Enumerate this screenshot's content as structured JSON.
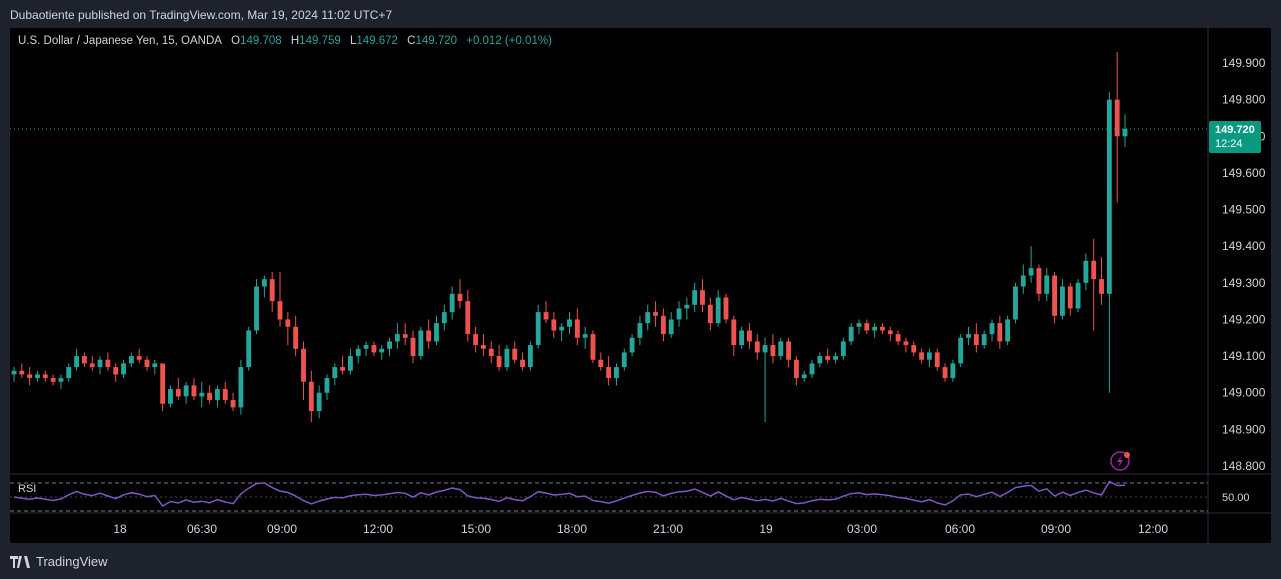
{
  "header": {
    "published_line": "Dubaotiente published on TradingView.com, Mar 19, 2024 11:02 UTC+7"
  },
  "legend": {
    "symbol": "U.S. Dollar / Japanese Yen, 15, OANDA",
    "o_label": "O",
    "o_value": "149.708",
    "h_label": "H",
    "h_value": "149.759",
    "l_label": "L",
    "l_value": "149.672",
    "c_label": "C",
    "c_value": "149.720",
    "change": "+0.012 (+0.01%)"
  },
  "price_tag": {
    "price": "149.720",
    "countdown": "12:24"
  },
  "rsi": {
    "label": "RSI",
    "level_label": "50.00"
  },
  "footer": {
    "brand": "TradingView"
  },
  "colors": {
    "up": "#26a69a",
    "down": "#ef5350",
    "rsi_line": "#7e57c2",
    "tag_bg": "#089981"
  },
  "icons": {
    "alert": "lightning-bolt-icon",
    "brand": "tradingview-logo-icon"
  },
  "chart_data": {
    "type": "candlestick",
    "symbol": "USDJPY",
    "timeframe": "15",
    "y_axis_ticks": [
      "149.900",
      "149.800",
      "149.700",
      "149.600",
      "149.500",
      "149.400",
      "149.300",
      "149.200",
      "149.100",
      "149.000",
      "148.900",
      "148.800"
    ],
    "ylim": [
      148.8,
      149.9
    ],
    "x_axis_ticks": [
      "18",
      "06:30",
      "09:00",
      "12:00",
      "15:00",
      "18:00",
      "21:00",
      "19",
      "03:00",
      "06:00",
      "09:00",
      "12:00"
    ],
    "last_price": 149.72,
    "candles_ohlc": [
      [
        149.05,
        149.07,
        149.03,
        149.06
      ],
      [
        149.06,
        149.08,
        149.04,
        149.05
      ],
      [
        149.05,
        149.07,
        149.02,
        149.04
      ],
      [
        149.04,
        149.06,
        149.03,
        149.05
      ],
      [
        149.05,
        149.06,
        149.03,
        149.04
      ],
      [
        149.04,
        149.05,
        149.02,
        149.03
      ],
      [
        149.03,
        149.05,
        149.01,
        149.04
      ],
      [
        149.04,
        149.08,
        149.03,
        149.07
      ],
      [
        149.07,
        149.12,
        149.06,
        149.1
      ],
      [
        149.1,
        149.11,
        149.07,
        149.08
      ],
      [
        149.08,
        149.1,
        149.06,
        149.07
      ],
      [
        149.07,
        149.1,
        149.05,
        149.09
      ],
      [
        149.09,
        149.11,
        149.06,
        149.07
      ],
      [
        149.07,
        149.08,
        149.03,
        149.05
      ],
      [
        149.05,
        149.09,
        149.04,
        149.08
      ],
      [
        149.08,
        149.11,
        149.07,
        149.1
      ],
      [
        149.1,
        149.12,
        149.08,
        149.09
      ],
      [
        149.09,
        149.1,
        149.06,
        149.07
      ],
      [
        149.07,
        149.09,
        149.05,
        149.08
      ],
      [
        149.08,
        149.08,
        148.95,
        148.97
      ],
      [
        148.97,
        149.02,
        148.96,
        149.01
      ],
      [
        149.01,
        149.04,
        148.98,
        148.99
      ],
      [
        148.99,
        149.03,
        148.97,
        149.02
      ],
      [
        149.02,
        149.04,
        148.98,
        148.99
      ],
      [
        148.99,
        149.03,
        148.96,
        149.0
      ],
      [
        149.0,
        149.02,
        148.97,
        148.98
      ],
      [
        148.98,
        149.02,
        148.96,
        149.01
      ],
      [
        149.01,
        149.03,
        148.97,
        148.98
      ],
      [
        148.98,
        149.0,
        148.95,
        148.96
      ],
      [
        148.96,
        149.09,
        148.94,
        149.07
      ],
      [
        149.07,
        149.18,
        149.06,
        149.17
      ],
      [
        149.17,
        149.31,
        149.16,
        149.29
      ],
      [
        149.29,
        149.32,
        149.26,
        149.31
      ],
      [
        149.31,
        149.33,
        149.22,
        149.25
      ],
      [
        149.25,
        149.33,
        149.18,
        149.2
      ],
      [
        149.2,
        149.22,
        149.13,
        149.18
      ],
      [
        149.18,
        149.21,
        149.1,
        149.12
      ],
      [
        149.12,
        149.14,
        148.98,
        149.03
      ],
      [
        149.03,
        149.06,
        148.92,
        148.95
      ],
      [
        148.95,
        149.02,
        148.93,
        149.0
      ],
      [
        149.0,
        149.05,
        148.98,
        149.04
      ],
      [
        149.04,
        149.08,
        149.02,
        149.07
      ],
      [
        149.07,
        149.1,
        149.05,
        149.06
      ],
      [
        149.06,
        149.12,
        149.05,
        149.1
      ],
      [
        149.1,
        149.13,
        149.08,
        149.12
      ],
      [
        149.12,
        149.14,
        149.1,
        149.13
      ],
      [
        149.13,
        149.14,
        149.1,
        149.11
      ],
      [
        149.11,
        149.13,
        149.09,
        149.12
      ],
      [
        149.12,
        149.15,
        149.1,
        149.14
      ],
      [
        149.14,
        149.19,
        149.12,
        149.16
      ],
      [
        149.16,
        149.19,
        149.13,
        149.15
      ],
      [
        149.15,
        149.17,
        149.08,
        149.1
      ],
      [
        149.1,
        149.18,
        149.09,
        149.17
      ],
      [
        149.17,
        149.2,
        149.12,
        149.14
      ],
      [
        149.14,
        149.21,
        149.13,
        149.19
      ],
      [
        149.19,
        149.24,
        149.17,
        149.22
      ],
      [
        149.22,
        149.29,
        149.2,
        149.27
      ],
      [
        149.27,
        149.31,
        149.23,
        149.25
      ],
      [
        149.25,
        149.28,
        149.14,
        149.16
      ],
      [
        149.16,
        149.18,
        149.11,
        149.13
      ],
      [
        149.13,
        149.16,
        149.1,
        149.12
      ],
      [
        149.12,
        149.14,
        149.08,
        149.1
      ],
      [
        149.1,
        149.13,
        149.06,
        149.07
      ],
      [
        149.07,
        149.13,
        149.06,
        149.12
      ],
      [
        149.12,
        149.14,
        149.08,
        149.09
      ],
      [
        149.09,
        149.11,
        149.06,
        149.07
      ],
      [
        149.07,
        149.14,
        149.06,
        149.13
      ],
      [
        149.13,
        149.24,
        149.12,
        149.22
      ],
      [
        149.22,
        149.25,
        149.19,
        149.2
      ],
      [
        149.2,
        149.22,
        149.15,
        149.17
      ],
      [
        149.17,
        149.19,
        149.14,
        149.18
      ],
      [
        149.18,
        149.22,
        149.16,
        149.2
      ],
      [
        149.2,
        149.23,
        149.13,
        149.15
      ],
      [
        149.15,
        149.18,
        149.12,
        149.16
      ],
      [
        149.16,
        149.17,
        149.08,
        149.09
      ],
      [
        149.09,
        149.11,
        149.06,
        149.07
      ],
      [
        149.07,
        149.1,
        149.02,
        149.04
      ],
      [
        149.04,
        149.08,
        149.02,
        149.07
      ],
      [
        149.07,
        149.12,
        149.06,
        149.11
      ],
      [
        149.11,
        149.16,
        149.1,
        149.15
      ],
      [
        149.15,
        149.21,
        149.13,
        149.19
      ],
      [
        149.19,
        149.24,
        149.17,
        149.22
      ],
      [
        149.22,
        149.25,
        149.18,
        149.21
      ],
      [
        149.21,
        149.23,
        149.14,
        149.16
      ],
      [
        149.16,
        149.22,
        149.15,
        149.2
      ],
      [
        149.2,
        149.25,
        149.18,
        149.23
      ],
      [
        149.23,
        149.26,
        149.2,
        149.24
      ],
      [
        149.24,
        149.3,
        149.22,
        149.28
      ],
      [
        149.28,
        149.31,
        149.22,
        149.24
      ],
      [
        149.24,
        149.26,
        149.17,
        149.19
      ],
      [
        149.19,
        149.28,
        149.18,
        149.26
      ],
      [
        149.26,
        149.27,
        149.19,
        149.2
      ],
      [
        149.2,
        149.21,
        149.1,
        149.13
      ],
      [
        149.13,
        149.18,
        149.12,
        149.17
      ],
      [
        149.17,
        149.19,
        149.12,
        149.14
      ],
      [
        149.14,
        149.16,
        149.09,
        149.11
      ],
      [
        149.11,
        149.15,
        148.92,
        149.13
      ],
      [
        149.13,
        149.16,
        149.08,
        149.1
      ],
      [
        149.1,
        149.15,
        149.09,
        149.14
      ],
      [
        149.14,
        149.15,
        149.07,
        149.09
      ],
      [
        149.09,
        149.1,
        149.02,
        149.04
      ],
      [
        149.04,
        149.06,
        149.03,
        149.05
      ],
      [
        149.05,
        149.09,
        149.04,
        149.08
      ],
      [
        149.08,
        149.11,
        149.07,
        149.1
      ],
      [
        149.1,
        149.12,
        149.08,
        149.09
      ],
      [
        149.09,
        149.11,
        149.08,
        149.1
      ],
      [
        149.1,
        149.15,
        149.09,
        149.14
      ],
      [
        149.14,
        149.19,
        149.13,
        149.18
      ],
      [
        149.18,
        149.2,
        149.16,
        149.19
      ],
      [
        149.19,
        149.2,
        149.16,
        149.17
      ],
      [
        149.17,
        149.19,
        149.15,
        149.18
      ],
      [
        149.18,
        149.19,
        149.16,
        149.17
      ],
      [
        149.17,
        149.18,
        149.14,
        149.16
      ],
      [
        149.16,
        149.17,
        149.13,
        149.14
      ],
      [
        149.14,
        149.15,
        149.11,
        149.13
      ],
      [
        149.13,
        149.14,
        149.1,
        149.11
      ],
      [
        149.11,
        149.12,
        149.08,
        149.09
      ],
      [
        149.09,
        149.12,
        149.07,
        149.11
      ],
      [
        149.11,
        149.12,
        149.06,
        149.07
      ],
      [
        149.07,
        149.08,
        149.03,
        149.04
      ],
      [
        149.04,
        149.09,
        149.03,
        149.08
      ],
      [
        149.08,
        149.16,
        149.07,
        149.15
      ],
      [
        149.15,
        149.18,
        149.13,
        149.16
      ],
      [
        149.16,
        149.19,
        149.11,
        149.13
      ],
      [
        149.13,
        149.17,
        149.12,
        149.16
      ],
      [
        149.16,
        149.2,
        149.14,
        149.19
      ],
      [
        149.19,
        149.21,
        149.12,
        149.14
      ],
      [
        149.14,
        149.21,
        149.13,
        149.2
      ],
      [
        149.2,
        149.3,
        149.19,
        149.29
      ],
      [
        149.29,
        149.35,
        149.27,
        149.32
      ],
      [
        149.32,
        149.4,
        149.3,
        149.34
      ],
      [
        149.34,
        149.35,
        149.25,
        149.27
      ],
      [
        149.27,
        149.34,
        149.25,
        149.32
      ],
      [
        149.32,
        149.33,
        149.19,
        149.21
      ],
      [
        149.21,
        149.31,
        149.2,
        149.29
      ],
      [
        149.29,
        149.3,
        149.21,
        149.23
      ],
      [
        149.23,
        149.31,
        149.22,
        149.3
      ],
      [
        149.3,
        149.38,
        149.28,
        149.36
      ],
      [
        149.36,
        149.42,
        149.17,
        149.31
      ],
      [
        149.31,
        149.37,
        149.24,
        149.27
      ],
      [
        149.27,
        149.82,
        149.0,
        149.8
      ],
      [
        149.8,
        149.93,
        149.52,
        149.7
      ],
      [
        149.7,
        149.76,
        149.67,
        149.72
      ]
    ],
    "rsi_levels": [
      "70",
      "50.00",
      "30"
    ]
  }
}
